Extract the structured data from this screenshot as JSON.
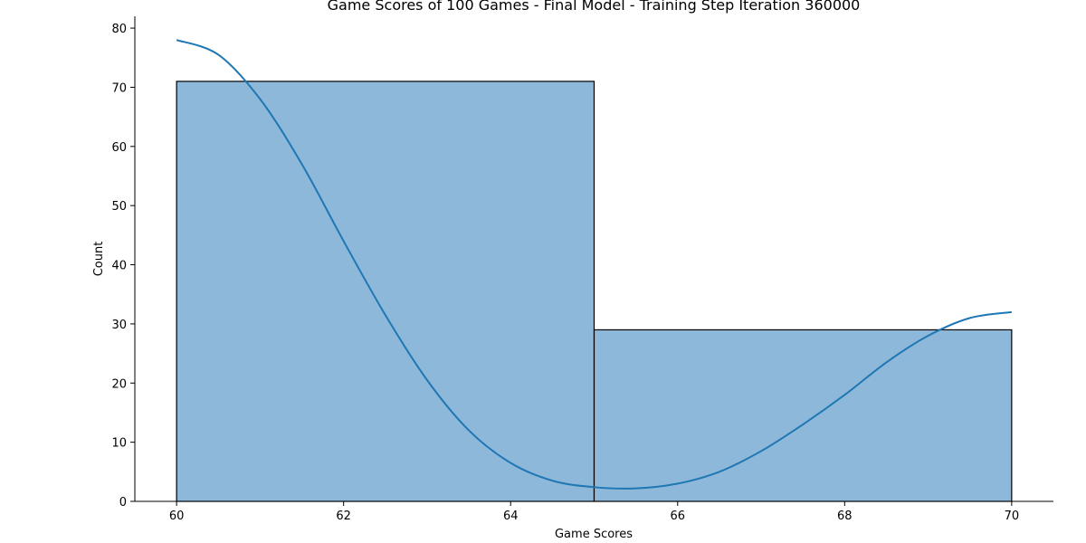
{
  "chart_data": {
    "type": "bar",
    "title": "Game Scores of 100 Games - Final Model - Training Step Iteration 360000",
    "xlabel": "Game Scores",
    "ylabel": "Count",
    "bins": [
      {
        "x0": 60,
        "x1": 65,
        "value": 71
      },
      {
        "x0": 65,
        "x1": 70,
        "value": 29
      }
    ],
    "kde": {
      "x": [
        60,
        60.5,
        61,
        61.5,
        62,
        62.5,
        63,
        63.5,
        64,
        64.5,
        65,
        65.5,
        66,
        66.5,
        67,
        67.5,
        68,
        68.5,
        69,
        69.5,
        70
      ],
      "y": [
        78,
        75.5,
        68,
        57,
        44,
        31.5,
        20.5,
        12,
        6.5,
        3.5,
        2.4,
        2.2,
        3,
        5,
        8.5,
        13,
        18,
        23.5,
        28,
        31,
        32
      ]
    },
    "xticks": [
      "60",
      "62",
      "64",
      "66",
      "68",
      "70"
    ],
    "yticks": [
      "0",
      "10",
      "20",
      "30",
      "40",
      "50",
      "60",
      "70",
      "80"
    ],
    "xlim": [
      59.5,
      70.5
    ],
    "ylim": [
      0,
      82
    ],
    "grid": false,
    "colors": {
      "bar_fill": "#8db8da",
      "bar_edge": "#000000",
      "kde_line": "#1f77b4"
    }
  }
}
